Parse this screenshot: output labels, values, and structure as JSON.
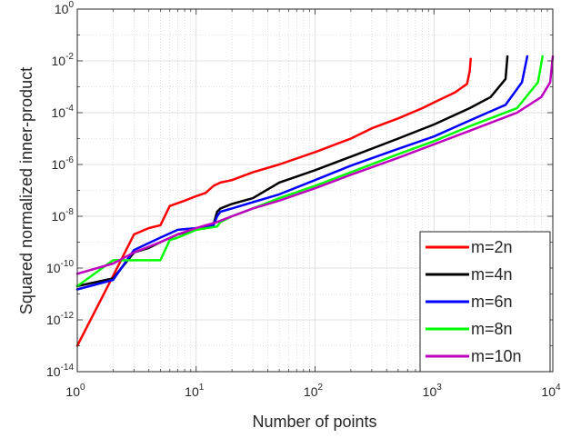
{
  "chart_data": {
    "type": "line",
    "title": "",
    "xlabel": "Number of points",
    "ylabel": "Squared normalized inner-product",
    "xscale": "log",
    "yscale": "log",
    "xlim": [
      1,
      10000
    ],
    "ylim": [
      1e-14,
      1
    ],
    "grid": "on (major and minor)",
    "legend_position": "bottom-right",
    "x_ticks": [
      {
        "value": 1,
        "base": "10",
        "exp": "0"
      },
      {
        "value": 10,
        "base": "10",
        "exp": "1"
      },
      {
        "value": 100,
        "base": "10",
        "exp": "2"
      },
      {
        "value": 1000,
        "base": "10",
        "exp": "3"
      },
      {
        "value": 10000,
        "base": "10",
        "exp": "4"
      }
    ],
    "y_ticks": [
      {
        "value": 1,
        "base": "10",
        "exp": "0"
      },
      {
        "value": 0.01,
        "base": "10",
        "exp": "-2"
      },
      {
        "value": 0.0001,
        "base": "10",
        "exp": "-4"
      },
      {
        "value": 1e-06,
        "base": "10",
        "exp": "-6"
      },
      {
        "value": 1e-08,
        "base": "10",
        "exp": "-8"
      },
      {
        "value": 1e-10,
        "base": "10",
        "exp": "-10"
      },
      {
        "value": 1e-12,
        "base": "10",
        "exp": "-12"
      },
      {
        "value": 1e-14,
        "base": "10",
        "exp": "-14"
      }
    ],
    "series": [
      {
        "name": "m=2n",
        "color": "#ff0000",
        "x": [
          1,
          2,
          3,
          4,
          5,
          6,
          8,
          10,
          12,
          14,
          16,
          20,
          30,
          50,
          100,
          200,
          300,
          500,
          800,
          1000,
          1500,
          1900,
          2000,
          2040
        ],
        "y": [
          1e-13,
          5e-11,
          2e-09,
          3.5e-09,
          4.5e-09,
          2.5e-08,
          4e-08,
          6e-08,
          8e-08,
          1.5e-07,
          2e-07,
          2.5e-07,
          5e-07,
          1e-06,
          3e-06,
          1e-05,
          2.5e-05,
          6e-05,
          0.00015,
          0.00025,
          0.0006,
          0.0013,
          0.004,
          0.012
        ]
      },
      {
        "name": "m=4n",
        "color": "#000000",
        "x": [
          1,
          2,
          3,
          4,
          5,
          7,
          10,
          14,
          15,
          16,
          20,
          30,
          50,
          100,
          200,
          500,
          1000,
          2000,
          3000,
          4000,
          4150
        ],
        "y": [
          2e-11,
          4e-11,
          4e-10,
          6e-10,
          1e-09,
          2e-09,
          3e-09,
          5e-09,
          1.5e-08,
          2e-08,
          3e-08,
          5e-08,
          2e-07,
          6e-07,
          2e-06,
          1e-05,
          3.5e-05,
          0.00015,
          0.0004,
          0.002,
          0.015
        ]
      },
      {
        "name": "m=6n",
        "color": "#0000ff",
        "x": [
          1,
          2,
          3,
          5,
          7,
          10,
          14,
          15,
          16,
          20,
          30,
          50,
          100,
          200,
          500,
          1000,
          2000,
          4000,
          5500,
          6100
        ],
        "y": [
          1.5e-11,
          3.5e-11,
          5e-10,
          1.5e-09,
          3e-09,
          3.5e-09,
          4.5e-09,
          1e-08,
          1.5e-08,
          2e-08,
          3.5e-08,
          7e-08,
          2.5e-07,
          9e-07,
          4e-06,
          1.2e-05,
          5e-05,
          0.0002,
          0.0015,
          0.015
        ]
      },
      {
        "name": "m=8n",
        "color": "#00ff00",
        "x": [
          1,
          2,
          3,
          5,
          6,
          7,
          10,
          15,
          16,
          20,
          30,
          50,
          100,
          200,
          500,
          1000,
          2000,
          5000,
          7500,
          8200
        ],
        "y": [
          2e-11,
          2e-10,
          2e-10,
          2e-10,
          1.2e-09,
          1.5e-09,
          3e-09,
          4e-09,
          6e-09,
          1e-08,
          2e-08,
          5e-08,
          1.5e-07,
          5e-07,
          2.5e-06,
          8e-06,
          3e-05,
          0.00015,
          0.0015,
          0.015
        ]
      },
      {
        "name": "m=10n",
        "color": "#bf00bf",
        "x": [
          1,
          2,
          3,
          5,
          7,
          10,
          15,
          20,
          30,
          50,
          100,
          200,
          500,
          1000,
          2000,
          5000,
          8000,
          9500,
          10000
        ],
        "y": [
          6e-11,
          1.5e-10,
          4e-10,
          1e-09,
          2e-09,
          3.5e-09,
          6e-09,
          1e-08,
          2e-08,
          4e-08,
          1.2e-07,
          4e-07,
          1.8e-06,
          6e-06,
          2e-05,
          0.0001,
          0.0004,
          0.0015,
          0.015
        ]
      }
    ]
  }
}
